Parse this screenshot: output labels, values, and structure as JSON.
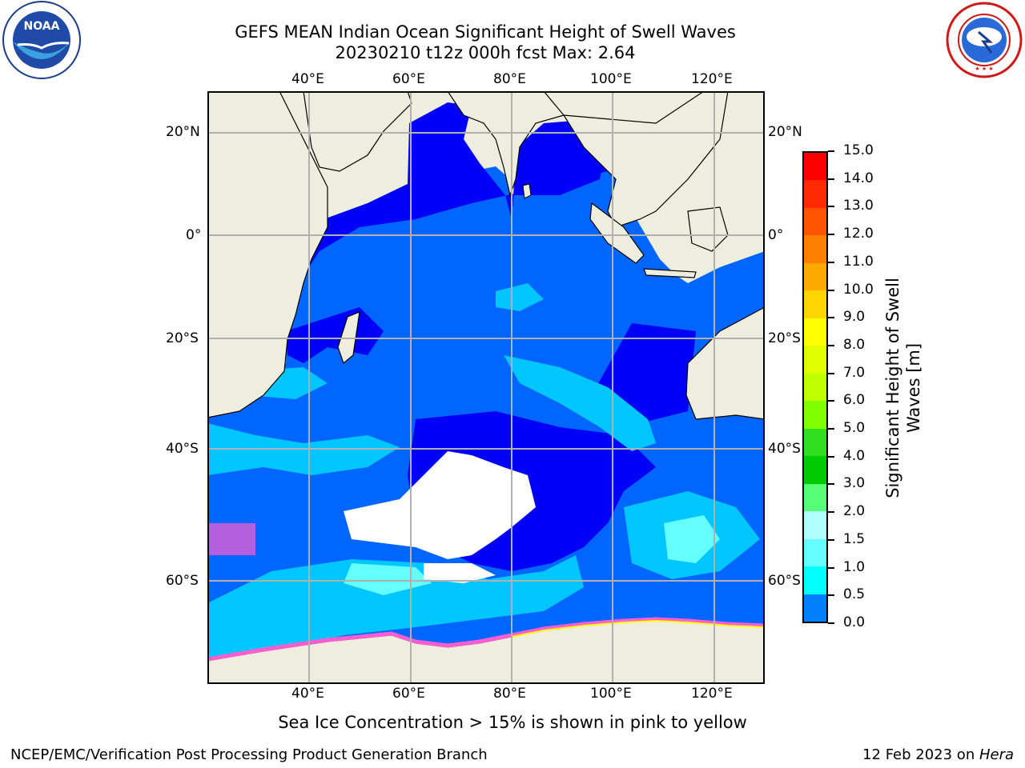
{
  "title": {
    "line1": "GEFS MEAN Indian Ocean Significant Height of Swell Waves",
    "line2": "20230210 t12z 000h fcst   Max: 2.64"
  },
  "logos": {
    "left": {
      "text": "NOAA",
      "ring_text": "NATIONAL OCEANIC AND ATMOSPHERIC ADMINISTRATION · U.S. DEPARTMENT OF COMMERCE",
      "icon": "noaa-logo-icon"
    },
    "right": {
      "ring_text": "NATIONAL WEATHER SERVICE",
      "icon": "nws-logo-icon"
    }
  },
  "map": {
    "lon_labels": [
      "40°E",
      "60°E",
      "80°E",
      "100°E",
      "120°E"
    ],
    "lat_labels": [
      "20°N",
      "0°",
      "20°S",
      "40°S",
      "60°S"
    ],
    "colors": {
      "land": "#eeeedf",
      "grid": "#b0b0b0",
      "deep": "#0000f6",
      "mid": "#0066ff",
      "swell": "#00c6ff",
      "high": "#00ffff",
      "ice": "#ff5dd0",
      "ice_yellow": "#ffff00"
    }
  },
  "colorbar": {
    "label_line1": "Significant Height of Swell",
    "label_line2": "Waves [m]",
    "ticks": [
      "15.0",
      "14.0",
      "13.0",
      "12.0",
      "11.0",
      "10.0",
      "9.0",
      "8.0",
      "7.0",
      "6.0",
      "5.0",
      "4.0",
      "3.0",
      "2.0",
      "1.5",
      "1.0",
      "0.5",
      "0.0"
    ],
    "colors": [
      "#ff0000",
      "#ff2a00",
      "#ff5500",
      "#ff7f00",
      "#ffaa00",
      "#ffd400",
      "#ffff00",
      "#e0ff00",
      "#c0ff00",
      "#80ff00",
      "#30e020",
      "#00cc00",
      "#55ff77",
      "#b0ffff",
      "#66ffff",
      "#00ffff",
      "#0080ff",
      "#0000ff"
    ]
  },
  "note": "Sea Ice Concentration > 15% is shown in pink to yellow",
  "footer": {
    "left": "NCEP/EMC/Verification Post Processing Product Generation Branch",
    "right_prefix": "12 Feb 2023 on ",
    "right_host": "Hera"
  }
}
